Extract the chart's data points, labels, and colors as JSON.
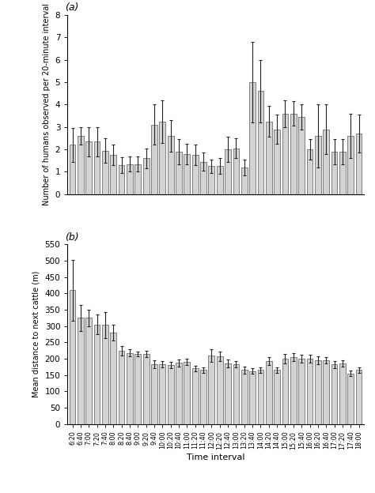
{
  "time_labels": [
    "6:20",
    "6:40",
    "7:00",
    "7:20",
    "7:40",
    "8:00",
    "8:20",
    "8:40",
    "9:00",
    "9:20",
    "9:40",
    "10:00",
    "10:20",
    "10:40",
    "11:00",
    "11:20",
    "11:40",
    "12:00",
    "12:20",
    "12:40",
    "13:00",
    "13:20",
    "13:40",
    "14:00",
    "14:20",
    "14:40",
    "15:00",
    "15:20",
    "15:40",
    "16:00",
    "16:20",
    "16:40",
    "17:00",
    "17:20",
    "17:40",
    "18:00"
  ],
  "panel_a": {
    "ylabel": "Number of humans observed per 20-minute interval",
    "label": "(a)",
    "ylim": [
      0,
      8
    ],
    "yticks": [
      0,
      1,
      2,
      3,
      4,
      5,
      6,
      7,
      8
    ],
    "bar_values": [
      2.2,
      2.6,
      2.35,
      2.35,
      1.95,
      1.75,
      1.3,
      1.35,
      1.35,
      1.6,
      3.1,
      3.25,
      2.6,
      1.9,
      1.8,
      1.75,
      1.45,
      1.25,
      1.25,
      2.0,
      2.05,
      1.2,
      5.0,
      4.6,
      3.25,
      2.9,
      3.6,
      3.6,
      3.45,
      2.0,
      2.6,
      2.9,
      1.9,
      1.9,
      2.6,
      2.7
    ],
    "bar_errors": [
      0.75,
      0.4,
      0.65,
      0.65,
      0.55,
      0.45,
      0.35,
      0.35,
      0.35,
      0.45,
      0.9,
      0.95,
      0.7,
      0.55,
      0.45,
      0.45,
      0.4,
      0.3,
      0.35,
      0.55,
      0.45,
      0.35,
      1.8,
      1.4,
      0.7,
      0.65,
      0.6,
      0.55,
      0.55,
      0.45,
      1.4,
      1.1,
      0.55,
      0.55,
      1.0,
      0.85
    ]
  },
  "panel_b": {
    "ylabel": "Mean distance to next cattle (m)",
    "label": "(b)",
    "ylim": [
      0,
      550
    ],
    "yticks": [
      0,
      50,
      100,
      150,
      200,
      250,
      300,
      350,
      400,
      450,
      500,
      550
    ],
    "bar_values": [
      410,
      325,
      325,
      305,
      303,
      280,
      225,
      218,
      215,
      215,
      183,
      183,
      180,
      187,
      190,
      170,
      165,
      210,
      207,
      185,
      183,
      165,
      162,
      165,
      193,
      165,
      200,
      205,
      200,
      200,
      195,
      195,
      182,
      185,
      155,
      165
    ],
    "bar_errors": [
      93,
      40,
      25,
      30,
      40,
      25,
      15,
      10,
      8,
      10,
      12,
      10,
      10,
      10,
      10,
      8,
      8,
      20,
      15,
      12,
      10,
      10,
      8,
      8,
      12,
      8,
      15,
      12,
      12,
      12,
      12,
      10,
      10,
      10,
      8,
      8
    ],
    "xlabel": "Time interval"
  },
  "bar_color": "#d3d3d3",
  "bar_edgecolor": "#555555",
  "figure_bgcolor": "#ffffff"
}
